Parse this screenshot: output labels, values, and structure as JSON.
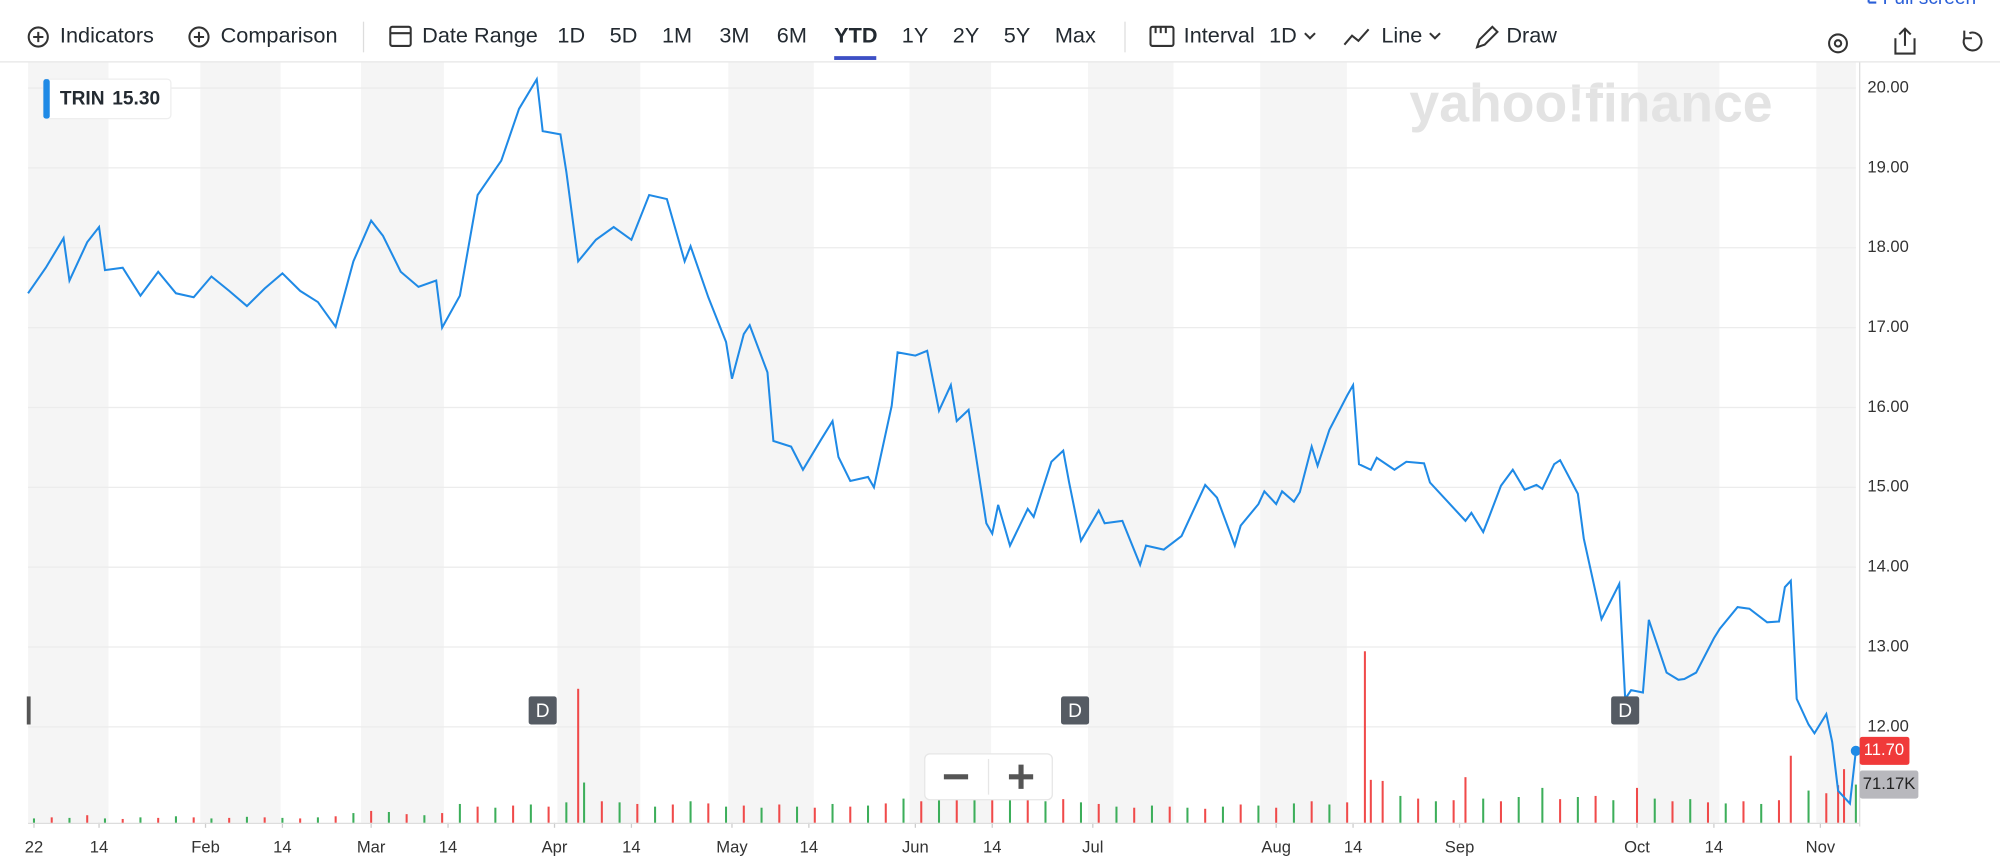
{
  "toolbar": {
    "indicators": "Indicators",
    "comparison": "Comparison",
    "date_range": "Date Range",
    "ranges": [
      "1D",
      "5D",
      "1M",
      "3M",
      "6M",
      "YTD",
      "1Y",
      "2Y",
      "5Y",
      "Max"
    ],
    "interval": "Interval",
    "interval_value": "1D",
    "chart_style": "Line",
    "draw": "Draw",
    "full_screen": "Full screen"
  },
  "watermark": "yahoo!finance",
  "chart_data": {
    "type": "line",
    "series": [
      {
        "name": "TRIN",
        "color": "#1f8ae6",
        "x": [
          2,
          5,
          8,
          9,
          12,
          14,
          15,
          18,
          21,
          24,
          27,
          30,
          33,
          36,
          39,
          42,
          45,
          48,
          51,
          54,
          57,
          60,
          62,
          65,
          68,
          71,
          72,
          75,
          78,
          82,
          85,
          88,
          89,
          92,
          93,
          95,
          98,
          101,
          104,
          107,
          110,
          113,
          114,
          117,
          120,
          121,
          123,
          124,
          127,
          128,
          131,
          133,
          136,
          138,
          139,
          141,
          144,
          145,
          148,
          149,
          152,
          154,
          156,
          158,
          159,
          161,
          162,
          164,
          165,
          166,
          168,
          171,
          172,
          175,
          177,
          178,
          180,
          183,
          184,
          187,
          190,
          191,
          194,
          197,
          199,
          201,
          203,
          206,
          207,
          210,
          211,
          213,
          214,
          216,
          217,
          219,
          220,
          222,
          225,
          226,
          227,
          229,
          230,
          233,
          235,
          238,
          239,
          242,
          245,
          246,
          248,
          249,
          251,
          253,
          255,
          257,
          258,
          260,
          261,
          264,
          265,
          268,
          271,
          272,
          273,
          275,
          276,
          279,
          281,
          282,
          284,
          287,
          288,
          291,
          293,
          296,
          298,
          299,
          300,
          301,
          303,
          304,
          306,
          307,
          308,
          310,
          311
        ],
        "values": [
          17.43,
          17.75,
          18.12,
          17.59,
          18.07,
          18.26,
          17.72,
          17.75,
          17.4,
          17.7,
          17.43,
          17.38,
          17.64,
          17.46,
          17.27,
          17.49,
          17.68,
          17.46,
          17.32,
          17.01,
          17.83,
          18.34,
          18.15,
          17.7,
          17.51,
          17.59,
          17.0,
          17.4,
          18.66,
          19.09,
          19.74,
          20.11,
          19.46,
          19.42,
          18.95,
          17.83,
          18.1,
          18.26,
          18.1,
          18.66,
          18.61,
          17.83,
          18.02,
          17.38,
          16.82,
          16.36,
          16.92,
          17.03,
          16.44,
          15.58,
          15.51,
          15.22,
          15.59,
          15.83,
          15.38,
          15.08,
          15.13,
          15.0,
          16.02,
          16.69,
          16.65,
          16.71,
          15.96,
          16.28,
          15.83,
          15.97,
          15.51,
          14.55,
          14.42,
          14.78,
          14.27,
          14.73,
          14.63,
          15.32,
          15.46,
          15.06,
          14.33,
          14.71,
          14.55,
          14.58,
          14.03,
          14.27,
          14.22,
          14.39,
          14.71,
          15.03,
          14.87,
          14.27,
          14.52,
          14.79,
          14.95,
          14.79,
          14.95,
          14.82,
          14.94,
          15.51,
          15.27,
          15.72,
          16.15,
          16.28,
          15.29,
          15.22,
          15.37,
          15.22,
          15.32,
          15.3,
          15.06,
          14.82,
          14.58,
          14.68,
          14.44,
          14.63,
          15.02,
          15.22,
          14.97,
          15.03,
          14.98,
          15.29,
          15.34,
          14.92,
          14.36,
          13.35,
          13.79,
          12.35,
          12.46,
          12.43,
          13.34,
          12.68,
          12.59,
          12.6,
          12.68,
          13.11,
          13.23,
          13.5,
          13.48,
          13.31,
          13.32,
          13.75,
          13.83,
          12.35,
          12.03,
          11.92,
          12.16,
          11.81,
          11.2,
          11.04,
          11.7
        ],
        "last_value_label": "11.70",
        "last_value_color": "#f03a3a"
      }
    ],
    "legend_value": "15.30",
    "xlim": [
      2,
      311
    ],
    "xticks": [
      {
        "value": 3,
        "label": "22"
      },
      {
        "value": 14,
        "label": "14"
      },
      {
        "value": 32,
        "label": "Feb"
      },
      {
        "value": 45,
        "label": "14"
      },
      {
        "value": 60,
        "label": "Mar"
      },
      {
        "value": 73,
        "label": "14"
      },
      {
        "value": 91,
        "label": "Apr"
      },
      {
        "value": 104,
        "label": "14"
      },
      {
        "value": 121,
        "label": "May"
      },
      {
        "value": 134,
        "label": "14"
      },
      {
        "value": 152,
        "label": "Jun"
      },
      {
        "value": 165,
        "label": "14"
      },
      {
        "value": 182,
        "label": "Jul"
      },
      {
        "value": 213,
        "label": "Aug"
      },
      {
        "value": 226,
        "label": "14"
      },
      {
        "value": 244,
        "label": "Sep"
      },
      {
        "value": 274,
        "label": "Oct"
      },
      {
        "value": 287,
        "label": "14"
      },
      {
        "value": 305,
        "label": "Nov"
      }
    ],
    "ylim": [
      10.8,
      20.32
    ],
    "yticks": [
      {
        "value": 12,
        "label": "12.00"
      },
      {
        "value": 13,
        "label": "13.00"
      },
      {
        "value": 14,
        "label": "14.00"
      },
      {
        "value": 15,
        "label": "15.00"
      },
      {
        "value": 16,
        "label": "16.00"
      },
      {
        "value": 17,
        "label": "17.00"
      },
      {
        "value": 18,
        "label": "18.00"
      },
      {
        "value": 19,
        "label": "19.00"
      },
      {
        "value": 20,
        "label": "20.00"
      }
    ],
    "grid": true,
    "events": {
      "x": [
        89,
        179,
        272
      ],
      "labels": [
        "D",
        "D",
        "D"
      ]
    },
    "volume": {
      "ylim": [
        0,
        400000
      ],
      "x": [
        3,
        6,
        9,
        12,
        15,
        18,
        21,
        24,
        27,
        30,
        33,
        36,
        39,
        42,
        45,
        48,
        51,
        54,
        57,
        60,
        63,
        66,
        69,
        72,
        75,
        78,
        81,
        84,
        87,
        90,
        93,
        95,
        96,
        99,
        102,
        105,
        108,
        111,
        114,
        117,
        120,
        123,
        126,
        129,
        132,
        135,
        138,
        141,
        144,
        147,
        150,
        153,
        156,
        159,
        162,
        165,
        168,
        171,
        174,
        177,
        180,
        183,
        186,
        189,
        192,
        195,
        198,
        201,
        204,
        207,
        210,
        213,
        216,
        219,
        222,
        225,
        228,
        229,
        231,
        234,
        237,
        240,
        243,
        245,
        248,
        251,
        254,
        258,
        261,
        264,
        267,
        270,
        274,
        277,
        280,
        283,
        286,
        289,
        292,
        295,
        298,
        300,
        303,
        306,
        308,
        309,
        311
      ],
      "values": [
        8000,
        10000,
        9000,
        14000,
        8000,
        7000,
        10000,
        9000,
        12000,
        10000,
        8000,
        9000,
        11000,
        10000,
        9000,
        8000,
        10000,
        12000,
        18000,
        22000,
        20000,
        16000,
        14000,
        18000,
        35000,
        30000,
        28000,
        32000,
        34000,
        30000,
        38000,
        250000,
        75000,
        40000,
        38000,
        35000,
        30000,
        34000,
        40000,
        36000,
        30000,
        32000,
        28000,
        34000,
        30000,
        28000,
        35000,
        30000,
        32000,
        36000,
        45000,
        40000,
        42000,
        50000,
        45000,
        48000,
        55000,
        46000,
        40000,
        44000,
        38000,
        35000,
        30000,
        28000,
        32000,
        30000,
        28000,
        26000,
        30000,
        34000,
        32000,
        28000,
        36000,
        40000,
        34000,
        38000,
        320000,
        80000,
        78000,
        50000,
        45000,
        40000,
        42000,
        85000,
        45000,
        40000,
        48000,
        65000,
        44000,
        48000,
        50000,
        42000,
        65000,
        45000,
        40000,
        44000,
        38000,
        36000,
        40000,
        35000,
        42000,
        125000,
        60000,
        55000,
        70000,
        100000,
        71170
      ],
      "colors": [
        "#3cae5a",
        "#f04a4a",
        "#3cae5a",
        "#f04a4a",
        "#3cae5a",
        "#f04a4a",
        "#3cae5a",
        "#f04a4a",
        "#3cae5a",
        "#f04a4a",
        "#3cae5a",
        "#f04a4a",
        "#3cae5a",
        "#f04a4a",
        "#3cae5a",
        "#f04a4a",
        "#3cae5a",
        "#f04a4a",
        "#3cae5a",
        "#f04a4a",
        "#3cae5a",
        "#f04a4a",
        "#3cae5a",
        "#f04a4a",
        "#3cae5a",
        "#f04a4a",
        "#3cae5a",
        "#f04a4a",
        "#3cae5a",
        "#f04a4a",
        "#3cae5a",
        "#f04a4a",
        "#3cae5a",
        "#f04a4a",
        "#3cae5a",
        "#f04a4a",
        "#3cae5a",
        "#f04a4a",
        "#3cae5a",
        "#f04a4a",
        "#3cae5a",
        "#f04a4a",
        "#3cae5a",
        "#f04a4a",
        "#3cae5a",
        "#f04a4a",
        "#3cae5a",
        "#f04a4a",
        "#3cae5a",
        "#f04a4a",
        "#3cae5a",
        "#f04a4a",
        "#3cae5a",
        "#f04a4a",
        "#3cae5a",
        "#f04a4a",
        "#3cae5a",
        "#f04a4a",
        "#3cae5a",
        "#f04a4a",
        "#3cae5a",
        "#f04a4a",
        "#3cae5a",
        "#f04a4a",
        "#3cae5a",
        "#f04a4a",
        "#3cae5a",
        "#f04a4a",
        "#3cae5a",
        "#f04a4a",
        "#3cae5a",
        "#f04a4a",
        "#3cae5a",
        "#f04a4a",
        "#3cae5a",
        "#f04a4a",
        "#f04a4a",
        "#f04a4a",
        "#f04a4a",
        "#3cae5a",
        "#f04a4a",
        "#3cae5a",
        "#f04a4a",
        "#f04a4a",
        "#3cae5a",
        "#f04a4a",
        "#3cae5a",
        "#3cae5a",
        "#f04a4a",
        "#3cae5a",
        "#f04a4a",
        "#3cae5a",
        "#f04a4a",
        "#3cae5a",
        "#f04a4a",
        "#3cae5a",
        "#f04a4a",
        "#3cae5a",
        "#f04a4a",
        "#3cae5a",
        "#f04a4a",
        "#f04a4a",
        "#3cae5a",
        "#f04a4a",
        "#f04a4a",
        "#f04a4a",
        "#3cae5a"
      ],
      "last_label": "71.17K"
    }
  }
}
